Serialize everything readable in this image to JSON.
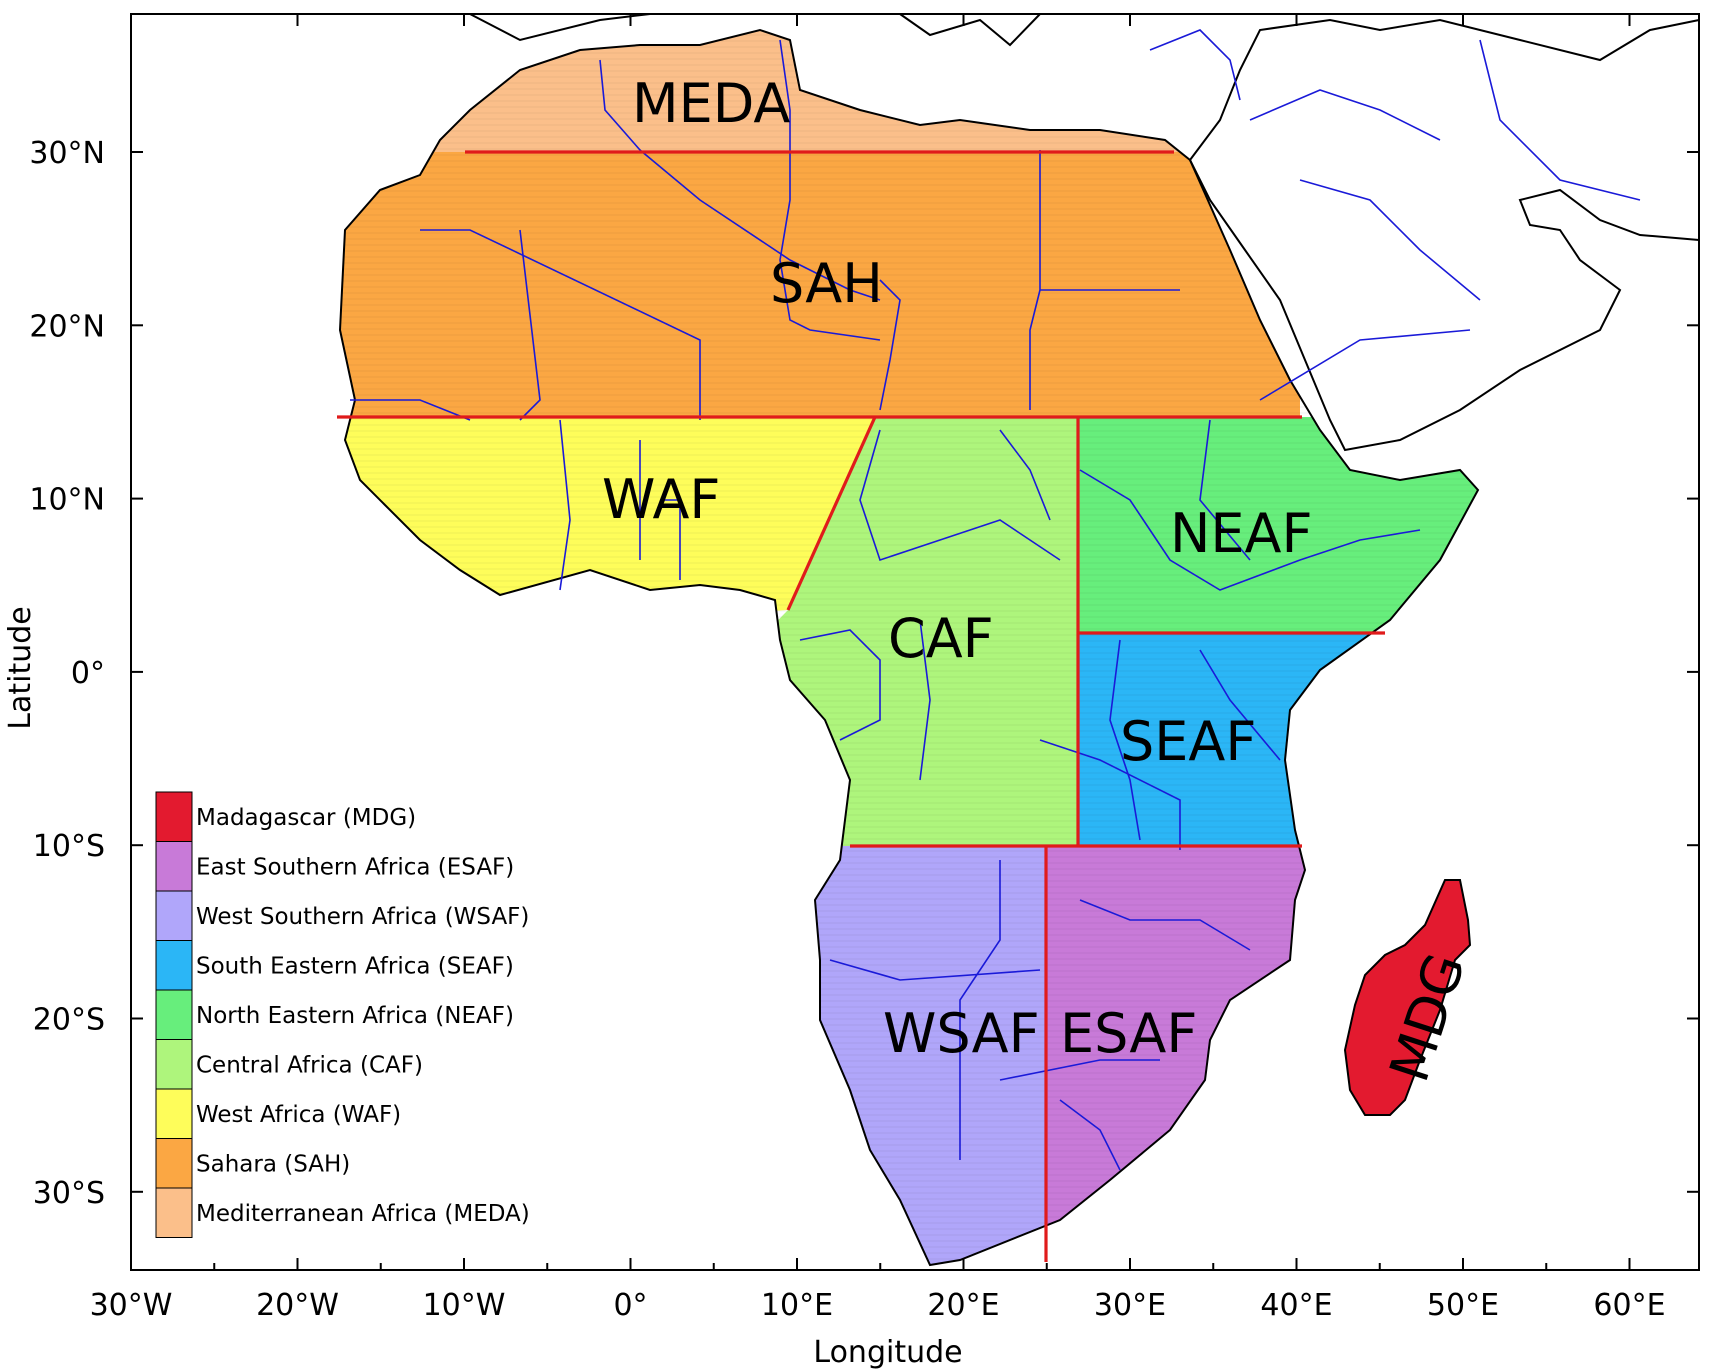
{
  "axes": {
    "x_title": "Longitude",
    "y_title": "Latitude",
    "x_ticks": [
      "30°W",
      "20°W",
      "10°W",
      "0°",
      "10°E",
      "20°E",
      "30°E",
      "40°E",
      "50°E",
      "60°E"
    ],
    "y_ticks": [
      "30°N",
      "20°N",
      "10°N",
      "0°",
      "10°S",
      "20°S",
      "30°S"
    ]
  },
  "regions": [
    {
      "id": "MDG",
      "label": "MDG",
      "color": "#e31a2f",
      "label_color": "#3cdc1e"
    },
    {
      "id": "ESAF",
      "label": "ESAF",
      "color": "#c87ad8"
    },
    {
      "id": "WSAF",
      "label": "WSAF",
      "color": "#b0a6fa"
    },
    {
      "id": "SEAF",
      "label": "SEAF",
      "color": "#2bb6f6"
    },
    {
      "id": "NEAF",
      "label": "NEAF",
      "color": "#67ee7c"
    },
    {
      "id": "CAF",
      "label": "CAF",
      "color": "#aef57c"
    },
    {
      "id": "WAF",
      "label": "WAF",
      "color": "#fefd5a"
    },
    {
      "id": "SAH",
      "label": "SAH",
      "color": "#fba743"
    },
    {
      "id": "MEDA",
      "label": "MEDA",
      "color": "#fbbf8a"
    }
  ],
  "legend": [
    {
      "label": "Madagascar (MDG)",
      "color": "#e31a2f"
    },
    {
      "label": "East Southern Africa (ESAF)",
      "color": "#c87ad8"
    },
    {
      "label": "West Southern Africa (WSAF)",
      "color": "#b0a6fa"
    },
    {
      "label": "South Eastern Africa (SEAF)",
      "color": "#2bb6f6"
    },
    {
      "label": "North Eastern Africa (NEAF)",
      "color": "#67ee7c"
    },
    {
      "label": "Central Africa (CAF)",
      "color": "#aef57c"
    },
    {
      "label": "West Africa (WAF)",
      "color": "#fefd5a"
    },
    {
      "label": "Sahara (SAH)",
      "color": "#fba743"
    },
    {
      "label": "Mediterranean Africa (MEDA)",
      "color": "#fbbf8a"
    }
  ]
}
